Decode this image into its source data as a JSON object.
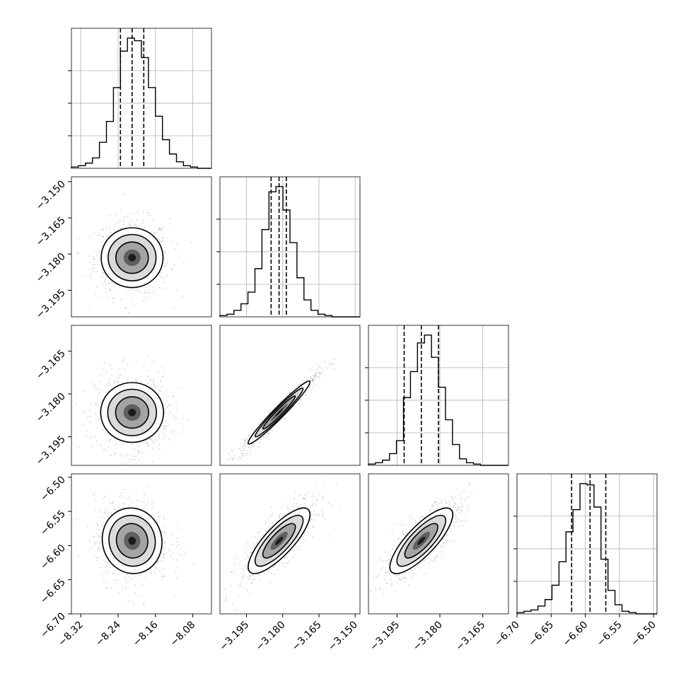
{
  "chart_data": {
    "type": "corner",
    "grid": true,
    "n_params": 4,
    "params": [
      {
        "range": [
          -8.34,
          -8.04
        ],
        "ticks": [
          -8.32,
          -8.24,
          -8.16,
          -8.08
        ],
        "tick_labels": [
          "−8.32",
          "−8.24",
          "−8.16",
          "−8.08"
        ],
        "quantiles": [
          -8.235,
          -8.21,
          -8.185
        ]
      },
      {
        "range": [
          -3.206,
          -3.148
        ],
        "ticks": [
          -3.195,
          -3.18,
          -3.165,
          -3.15
        ],
        "tick_labels": [
          "−3.195",
          "−3.180",
          "−3.165",
          "−3.150"
        ],
        "quantiles": [
          -3.1848,
          -3.1815,
          -3.1785
        ]
      },
      {
        "range": [
          -3.205,
          -3.156
        ],
        "ticks": [
          -3.195,
          -3.18,
          -3.165
        ],
        "tick_labels": [
          "−3.195",
          "−3.180",
          "−3.165"
        ],
        "quantiles": [
          -3.1925,
          -3.1865,
          -3.1805
        ]
      },
      {
        "range": [
          -6.7,
          -6.495
        ],
        "ticks": [
          -6.7,
          -6.65,
          -6.6,
          -6.55,
          -6.5
        ],
        "tick_labels": [
          "−6.70",
          "−6.65",
          "−6.60",
          "−6.55",
          "−6.50"
        ],
        "quantiles": [
          -6.62,
          -6.593,
          -6.57
        ]
      }
    ],
    "row_axis_ticks": {
      "1": {
        "ticks": [
          -3.15,
          -3.165,
          -3.18,
          -3.195
        ],
        "tick_labels": [
          "−3.150",
          "−3.165",
          "−3.180",
          "−3.195"
        ]
      },
      "2": {
        "ticks": [
          -3.165,
          -3.18,
          -3.195
        ],
        "tick_labels": [
          "−3.165",
          "−3.180",
          "−3.195"
        ]
      },
      "3": {
        "ticks": [
          -6.5,
          -6.55,
          -6.6,
          -6.65,
          -6.7
        ],
        "tick_labels": [
          "−6.50",
          "−6.55",
          "−6.60",
          "−6.65",
          "−6.70"
        ]
      }
    },
    "histograms": [
      {
        "bin_edges_from": -8.34,
        "bin_width": 0.015,
        "counts": [
          1,
          2,
          4,
          8,
          20,
          36,
          62,
          90,
          100,
          98,
          85,
          62,
          40,
          22,
          11,
          5,
          2,
          1,
          0,
          0
        ]
      },
      {
        "bin_edges_from": -3.206,
        "bin_width": 0.0029,
        "counts": [
          1,
          2,
          5,
          10,
          19,
          37,
          67,
          96,
          100,
          82,
          57,
          30,
          13,
          5,
          2,
          1,
          0,
          0,
          0,
          0
        ]
      },
      {
        "bin_edges_from": -3.205,
        "bin_width": 0.00245,
        "counts": [
          1,
          2,
          4,
          9,
          19,
          52,
          72,
          94,
          100,
          83,
          60,
          35,
          16,
          5,
          2,
          1,
          0,
          0,
          0,
          0
        ]
      },
      {
        "bin_edges_from": -6.7,
        "bin_width": 0.01025,
        "counts": [
          1,
          2,
          3,
          6,
          11,
          22,
          40,
          63,
          80,
          100,
          99,
          82,
          42,
          18,
          7,
          2,
          1,
          0,
          0,
          0
        ]
      }
    ],
    "pairs": [
      {
        "row": 1,
        "col": 0,
        "mean": [
          -8.21,
          -3.1815
        ],
        "std": [
          0.032,
          0.0064
        ],
        "corr": 0.0
      },
      {
        "row": 2,
        "col": 0,
        "mean": [
          -8.21,
          -3.1865
        ],
        "std": [
          0.032,
          0.0055
        ],
        "corr": 0.0
      },
      {
        "row": 2,
        "col": 1,
        "mean": [
          -3.1815,
          -3.1865
        ],
        "std": [
          0.0064,
          0.0055
        ],
        "corr": 0.97
      },
      {
        "row": 3,
        "col": 0,
        "mean": [
          -8.21,
          -6.593
        ],
        "std": [
          0.032,
          0.024
        ],
        "corr": -0.05
      },
      {
        "row": 3,
        "col": 1,
        "mean": [
          -3.1815,
          -6.593
        ],
        "std": [
          0.0064,
          0.024
        ],
        "corr": 0.8
      },
      {
        "row": 3,
        "col": 2,
        "mean": [
          -3.1865,
          -6.593
        ],
        "std": [
          0.0055,
          0.024
        ],
        "corr": 0.8
      }
    ]
  }
}
